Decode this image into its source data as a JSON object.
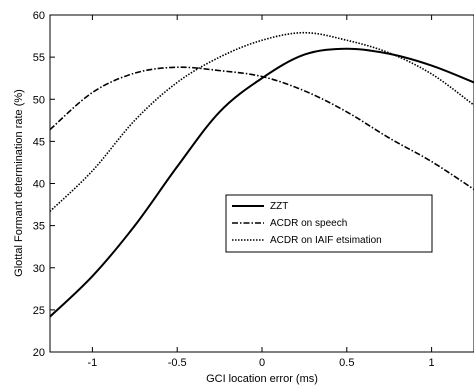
{
  "chart_data": {
    "type": "line",
    "title": "",
    "xlabel": "GCI location error (ms)",
    "ylabel": "Glottal Formant determination rate (%)",
    "xlim": [
      -1.25,
      1.25
    ],
    "ylim": [
      20,
      60
    ],
    "xticks": [
      -1,
      -0.5,
      0,
      0.5,
      1
    ],
    "xtick_labels": [
      "-1",
      "-0.5",
      "0",
      "0.5",
      "1"
    ],
    "yticks": [
      20,
      25,
      30,
      35,
      40,
      45,
      50,
      55,
      60
    ],
    "ytick_labels": [
      "20",
      "25",
      "30",
      "35",
      "40",
      "45",
      "50",
      "55",
      "60"
    ],
    "grid": false,
    "legend_position": "center-right",
    "series": [
      {
        "name": "ZZT",
        "style": "solid",
        "color": "#000000",
        "x": [
          -1.25,
          -1.0,
          -0.75,
          -0.5,
          -0.25,
          0.0,
          0.25,
          0.5,
          0.75,
          1.0,
          1.25
        ],
        "y": [
          24.2,
          29.0,
          35.0,
          42.0,
          48.5,
          52.5,
          55.3,
          56.0,
          55.4,
          54.0,
          52.0
        ]
      },
      {
        "name": "ACDR on speech",
        "style": "dashdot",
        "color": "#000000",
        "x": [
          -1.25,
          -1.0,
          -0.75,
          -0.5,
          -0.25,
          0.0,
          0.25,
          0.5,
          0.75,
          1.0,
          1.25
        ],
        "y": [
          46.4,
          50.8,
          53.1,
          53.8,
          53.4,
          52.7,
          51.0,
          48.5,
          45.4,
          42.6,
          39.3
        ]
      },
      {
        "name": "ACDR on IAIF etsimation",
        "style": "dotted",
        "color": "#000000",
        "x": [
          -1.25,
          -1.0,
          -0.75,
          -0.5,
          -0.25,
          0.0,
          0.25,
          0.5,
          0.75,
          1.0,
          1.25
        ],
        "y": [
          36.7,
          41.5,
          47.5,
          52.0,
          55.0,
          57.0,
          57.9,
          57.0,
          55.5,
          53.0,
          49.3
        ]
      }
    ]
  }
}
